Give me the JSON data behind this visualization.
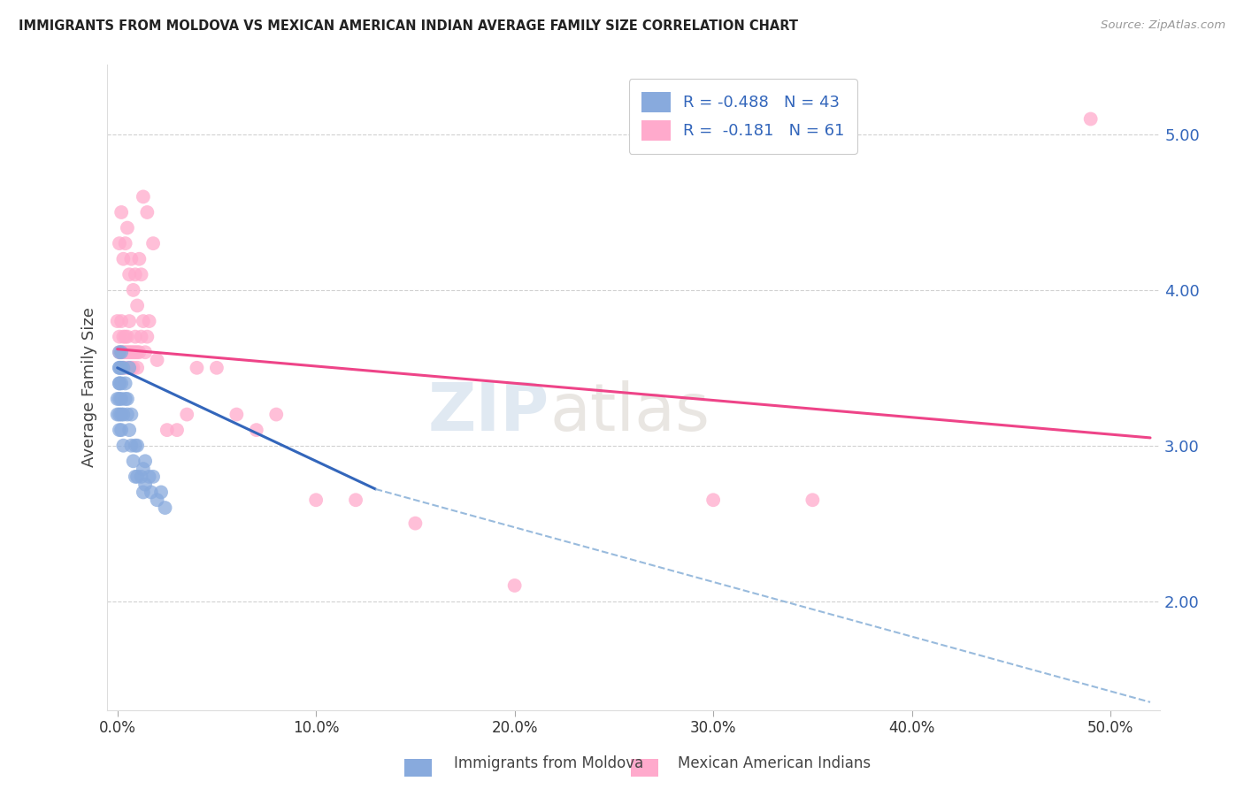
{
  "title": "IMMIGRANTS FROM MOLDOVA VS MEXICAN AMERICAN INDIAN AVERAGE FAMILY SIZE CORRELATION CHART",
  "source": "Source: ZipAtlas.com",
  "ylabel": "Average Family Size",
  "xlabel_ticks": [
    "0.0%",
    "10.0%",
    "20.0%",
    "30.0%",
    "40.0%",
    "50.0%"
  ],
  "xlabel_vals": [
    0.0,
    0.1,
    0.2,
    0.3,
    0.4,
    0.5
  ],
  "ylabel_ticks": [
    2.0,
    3.0,
    4.0,
    5.0
  ],
  "ylim": [
    1.3,
    5.45
  ],
  "xlim": [
    -0.005,
    0.525
  ],
  "color_blue": "#88AADD",
  "color_pink": "#FFAACC",
  "trendline_blue_color": "#3366BB",
  "trendline_pink_color": "#EE4488",
  "trendline_dashed_color": "#99BBDD",
  "watermark": "ZIPatlas",
  "blue_R": -0.488,
  "blue_N": 43,
  "pink_R": -0.181,
  "pink_N": 61,
  "blue_x": [
    0.0,
    0.0,
    0.001,
    0.001,
    0.001,
    0.001,
    0.001,
    0.001,
    0.001,
    0.001,
    0.002,
    0.002,
    0.002,
    0.002,
    0.002,
    0.002,
    0.003,
    0.003,
    0.003,
    0.004,
    0.004,
    0.005,
    0.005,
    0.006,
    0.006,
    0.007,
    0.007,
    0.008,
    0.009,
    0.009,
    0.01,
    0.01,
    0.012,
    0.013,
    0.013,
    0.014,
    0.014,
    0.016,
    0.017,
    0.018,
    0.02,
    0.022,
    0.024
  ],
  "blue_y": [
    3.2,
    3.3,
    3.4,
    3.5,
    3.6,
    3.3,
    3.2,
    3.1,
    3.4,
    3.5,
    3.4,
    3.3,
    3.2,
    3.5,
    3.1,
    3.6,
    3.5,
    3.2,
    3.0,
    3.3,
    3.4,
    3.3,
    3.2,
    3.5,
    3.1,
    3.2,
    3.0,
    2.9,
    3.0,
    2.8,
    3.0,
    2.8,
    2.8,
    2.7,
    2.85,
    2.9,
    2.75,
    2.8,
    2.7,
    2.8,
    2.65,
    2.7,
    2.6
  ],
  "pink_x": [
    0.0,
    0.001,
    0.001,
    0.002,
    0.002,
    0.002,
    0.003,
    0.003,
    0.003,
    0.004,
    0.004,
    0.005,
    0.005,
    0.005,
    0.006,
    0.006,
    0.007,
    0.007,
    0.008,
    0.008,
    0.009,
    0.009,
    0.01,
    0.01,
    0.011,
    0.012,
    0.013,
    0.014,
    0.015,
    0.016,
    0.001,
    0.002,
    0.003,
    0.004,
    0.005,
    0.006,
    0.007,
    0.008,
    0.009,
    0.01,
    0.011,
    0.012,
    0.013,
    0.015,
    0.018,
    0.02,
    0.025,
    0.03,
    0.035,
    0.04,
    0.05,
    0.06,
    0.07,
    0.08,
    0.1,
    0.12,
    0.15,
    0.2,
    0.3,
    0.35,
    0.49
  ],
  "pink_y": [
    3.8,
    3.6,
    3.7,
    3.5,
    3.6,
    3.8,
    3.6,
    3.7,
    3.5,
    3.6,
    3.7,
    3.5,
    3.6,
    3.7,
    3.6,
    3.8,
    3.5,
    3.6,
    3.6,
    3.5,
    3.6,
    3.7,
    3.5,
    3.6,
    3.6,
    3.7,
    3.8,
    3.6,
    3.7,
    3.8,
    4.3,
    4.5,
    4.2,
    4.3,
    4.4,
    4.1,
    4.2,
    4.0,
    4.1,
    3.9,
    4.2,
    4.1,
    4.6,
    4.5,
    4.3,
    3.55,
    3.1,
    3.1,
    3.2,
    3.5,
    3.5,
    3.2,
    3.1,
    3.2,
    2.65,
    2.65,
    2.5,
    2.1,
    2.65,
    2.65,
    5.1
  ],
  "blue_trendline_x0": 0.0,
  "blue_trendline_y0": 3.5,
  "blue_trendline_x1": 0.13,
  "blue_trendline_y1": 2.72,
  "blue_trendline_dash_x2": 0.52,
  "blue_trendline_dash_y2": 1.35,
  "pink_trendline_x0": 0.0,
  "pink_trendline_y0": 3.62,
  "pink_trendline_x1": 0.52,
  "pink_trendline_y1": 3.05
}
